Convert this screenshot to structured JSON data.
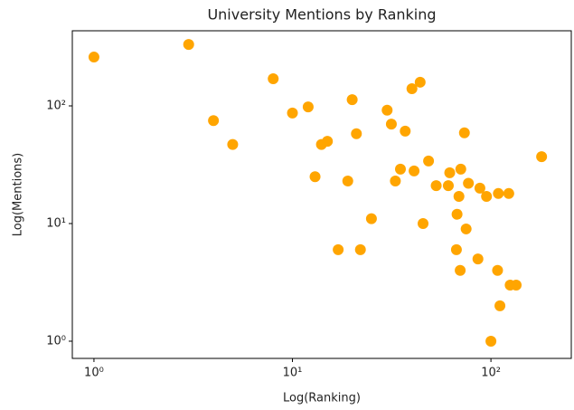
{
  "chart_data": {
    "type": "scatter",
    "title": "University Mentions by Ranking",
    "x_label": "Log(Ranking)",
    "y_label": "Log(Mentions)",
    "x_scale": "log",
    "y_scale": "log",
    "color": "#ffa500",
    "xlim": [
      0.778,
      254
    ],
    "ylim": [
      0.714,
      435
    ],
    "xticks": [
      {
        "value": 1,
        "label": "10⁰"
      },
      {
        "value": 10,
        "label": "10¹"
      },
      {
        "value": 100,
        "label": "10²"
      }
    ],
    "yticks": [
      {
        "value": 1,
        "label": "10⁰"
      },
      {
        "value": 10,
        "label": "10¹"
      },
      {
        "value": 100,
        "label": "10²"
      }
    ],
    "x": [
      1,
      3,
      4,
      5,
      8,
      10,
      12,
      13,
      14,
      15,
      19,
      20,
      21,
      17,
      22,
      25,
      30,
      31.5,
      33,
      35,
      37,
      40,
      41,
      44,
      45.5,
      48.5,
      53,
      61,
      62,
      67,
      67.5,
      69,
      70.5,
      70,
      73.5,
      75,
      77,
      86,
      88,
      95,
      100,
      109,
      108,
      111,
      123,
      125,
      134,
      180
    ],
    "values": [
      260,
      333,
      75,
      47,
      170,
      87,
      98,
      25,
      47,
      50,
      23,
      113,
      58,
      6,
      6,
      11,
      92,
      70,
      23,
      29,
      61,
      140,
      28,
      159,
      10,
      34,
      21,
      21,
      27,
      6,
      12,
      17,
      29,
      4,
      59,
      9,
      22,
      5,
      20,
      17,
      1,
      18,
      4,
      2,
      18,
      3,
      3,
      37
    ]
  }
}
